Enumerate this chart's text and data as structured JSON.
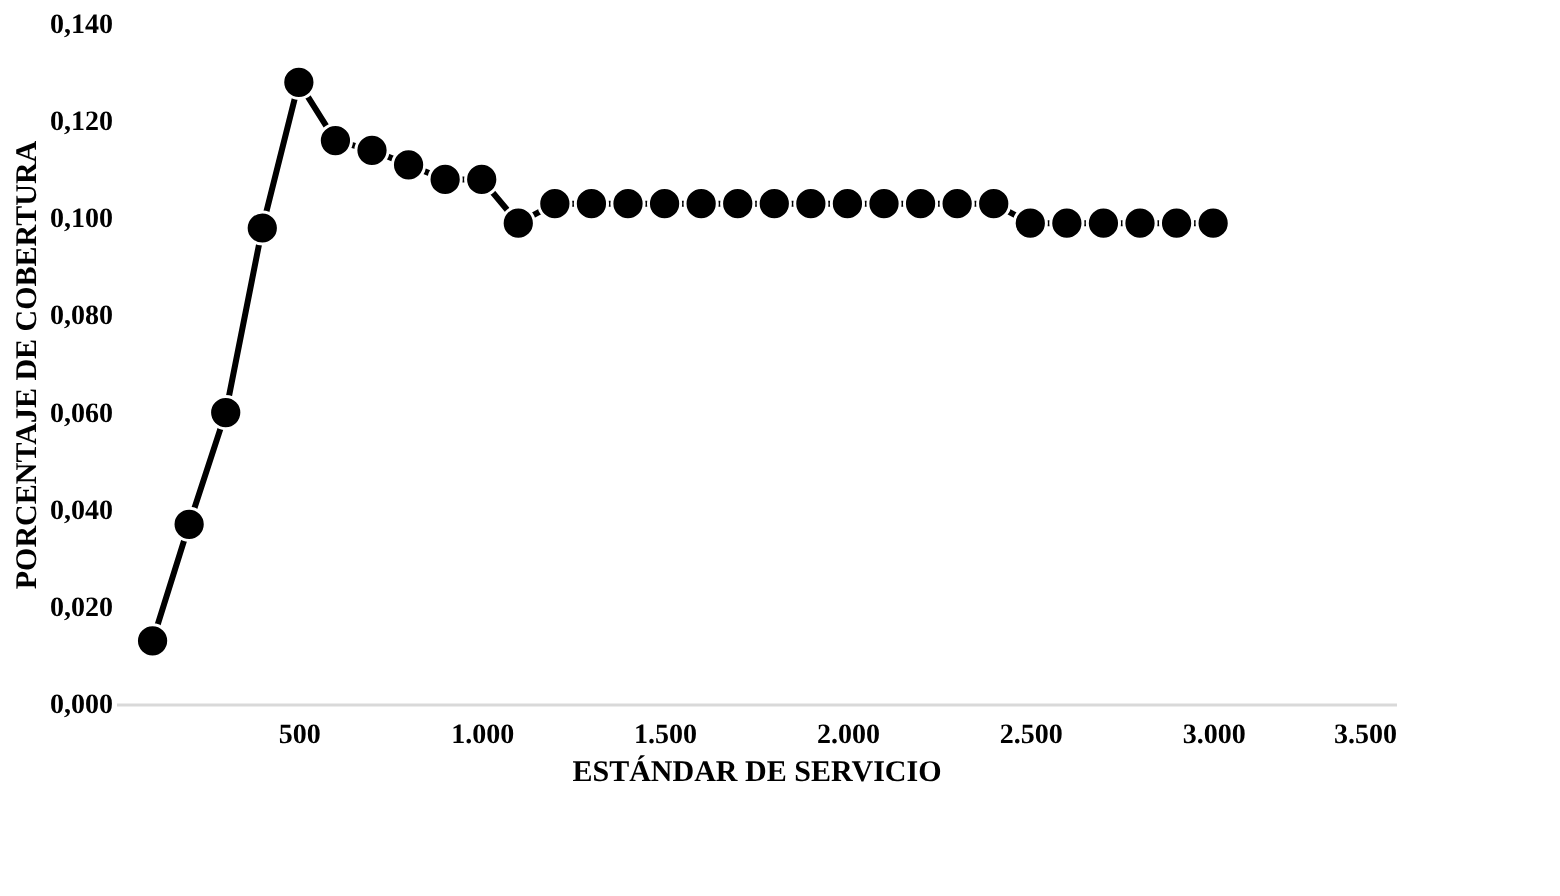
{
  "chart_data": {
    "type": "line",
    "xlabel": "ESTÁNDAR DE SERVICIO",
    "ylabel": "PORCENTAJE DE COBERTURA",
    "x": [
      100,
      200,
      300,
      400,
      500,
      600,
      700,
      800,
      900,
      1000,
      1100,
      1200,
      1300,
      1400,
      1500,
      1600,
      1700,
      1800,
      1900,
      2000,
      2100,
      2200,
      2300,
      2400,
      2500,
      2600,
      2700,
      2800,
      2900,
      3000
    ],
    "series": [
      {
        "color": "#000000",
        "values": [
          0.013,
          0.037,
          0.06,
          0.098,
          0.128,
          0.116,
          0.114,
          0.111,
          0.108,
          0.108,
          0.099,
          0.103,
          0.103,
          0.103,
          0.103,
          0.103,
          0.103,
          0.103,
          0.103,
          0.103,
          0.103,
          0.103,
          0.103,
          0.103,
          0.099,
          0.099,
          0.099,
          0.099,
          0.099,
          0.099
        ]
      }
    ],
    "xlim": [
      0,
      3500
    ],
    "xticks": [
      500,
      {
        "value": 1000,
        "label": "1.000"
      },
      {
        "value": 1500,
        "label": "1.500"
      },
      {
        "value": 2000,
        "label": "2.000"
      },
      {
        "value": 2500,
        "label": "2.500"
      },
      {
        "value": 3000,
        "label": "3.000"
      },
      {
        "value": 3500,
        "label": "3.500"
      }
    ],
    "ylim": [
      0,
      0.14
    ],
    "yticks": [
      {
        "value": 0,
        "label": "0,000"
      },
      {
        "value": 0.02,
        "label": "0,020"
      },
      {
        "value": 0.04,
        "label": "0,040"
      },
      {
        "value": 0.06,
        "label": "0,060"
      },
      {
        "value": 0.08,
        "label": "0,080"
      },
      {
        "value": 0.1,
        "label": "0,100"
      },
      {
        "value": 0.12,
        "label": "0,120"
      },
      {
        "value": 0.14,
        "label": "0,140"
      }
    ],
    "grid": false,
    "marker": "circle",
    "line_style": "solid"
  }
}
